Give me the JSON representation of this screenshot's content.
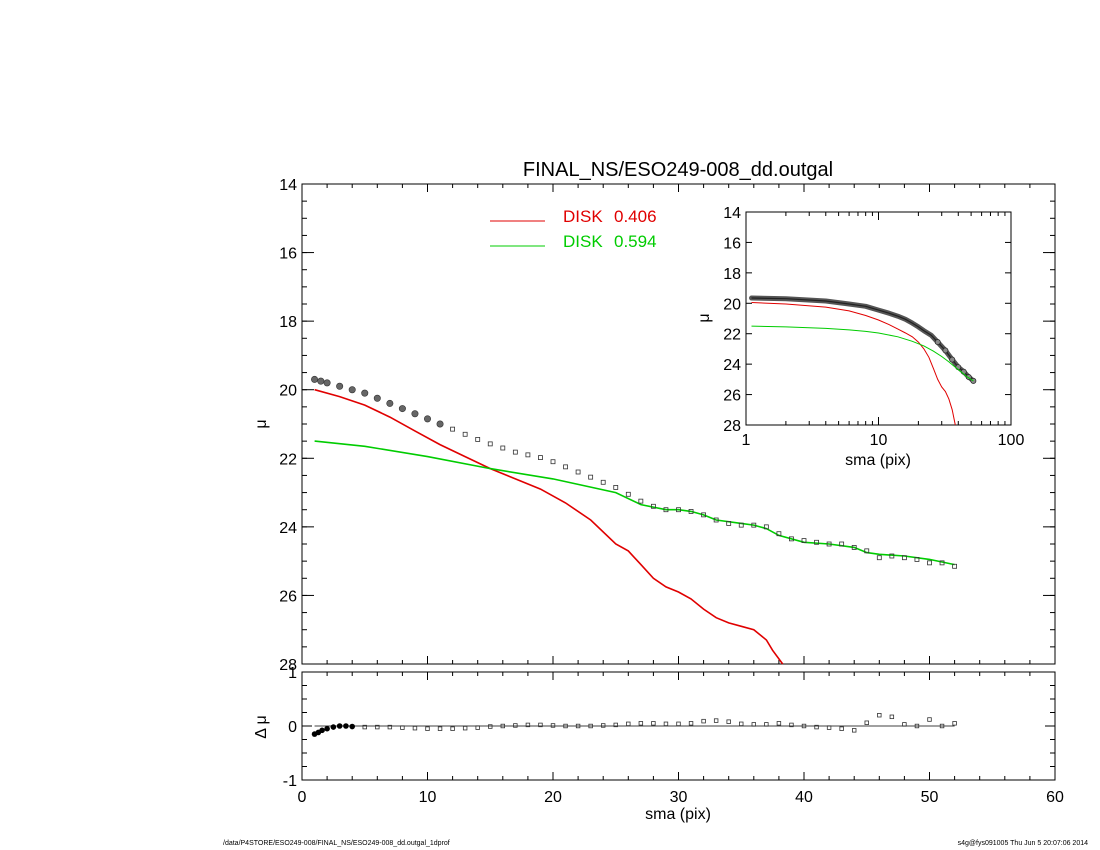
{
  "title": "FINAL_NS/ESO249-008_dd.outgal",
  "colors": {
    "data": "#555555",
    "disk1": "#e00000",
    "disk2": "#00cc00",
    "axis": "#000000"
  },
  "footer": {
    "left": "/data/P4STORE/ESO249-008/FINAL_NS/ESO249-008_dd.outgal_1dprof",
    "right": "s4g@fys091005  Thu Jun  5 20:07:06 2014"
  },
  "chart_data": [
    {
      "panel": "main",
      "type": "line",
      "xlabel": "",
      "ylabel": "μ",
      "xlim": [
        0,
        60
      ],
      "ylim": [
        28,
        14
      ],
      "y_inverted": true,
      "yticks": [
        14,
        16,
        18,
        20,
        22,
        24,
        26,
        28
      ],
      "xticks": [
        0,
        10,
        20,
        30,
        40,
        50,
        60
      ],
      "legend": {
        "placement": "top-center",
        "entries": [
          {
            "label": "DISK",
            "value": "0.406",
            "color": "#e00000"
          },
          {
            "label": "DISK",
            "value": "0.594",
            "color": "#00cc00"
          }
        ]
      },
      "series": [
        {
          "style": "dense-markers-then-squares",
          "x": [
            1.0,
            1.5,
            2.0,
            3.0,
            4.0,
            5.0,
            6.0,
            7.0,
            8.0,
            9.0,
            10.0,
            11.0,
            12.0,
            13.0,
            14.0,
            15.0,
            16.0,
            17.0,
            18.0,
            19.0,
            20.0,
            21.0,
            22.0,
            23.0,
            24.0,
            25.0,
            26.0,
            27.0,
            28.0,
            29.0,
            30.0,
            31.0,
            32.0,
            33.0,
            34.0,
            35.0,
            36.0,
            37.0,
            38.0,
            39.0,
            40.0,
            41.0,
            42.0,
            43.0,
            44.0,
            45.0,
            46.0,
            47.0,
            48.0,
            49.0,
            50.0,
            51.0,
            52.0
          ],
          "y": [
            19.7,
            19.75,
            19.8,
            19.9,
            20.0,
            20.1,
            20.25,
            20.4,
            20.55,
            20.7,
            20.85,
            21.0,
            21.15,
            21.3,
            21.45,
            21.58,
            21.7,
            21.82,
            21.9,
            21.98,
            22.1,
            22.25,
            22.4,
            22.55,
            22.7,
            22.85,
            23.05,
            23.25,
            23.4,
            23.5,
            23.5,
            23.55,
            23.65,
            23.8,
            23.9,
            23.95,
            23.95,
            24.0,
            24.2,
            24.35,
            24.4,
            24.45,
            24.5,
            24.5,
            24.6,
            24.7,
            24.9,
            24.85,
            24.9,
            24.95,
            25.05,
            25.05,
            25.15
          ]
        },
        {
          "name": "DISK",
          "color": "#e00000",
          "x": [
            1,
            3,
            5,
            7,
            9,
            11,
            13,
            15,
            17,
            19,
            21,
            23,
            25,
            26,
            27,
            28,
            29,
            30,
            31,
            32,
            33,
            34,
            35,
            36,
            37,
            37.5,
            38.3
          ],
          "y": [
            20.0,
            20.2,
            20.45,
            20.8,
            21.2,
            21.6,
            21.95,
            22.3,
            22.6,
            22.9,
            23.3,
            23.8,
            24.5,
            24.7,
            25.1,
            25.5,
            25.75,
            25.9,
            26.1,
            26.4,
            26.65,
            26.8,
            26.9,
            27.0,
            27.3,
            27.6,
            28.0
          ]
        },
        {
          "name": "DISK",
          "color": "#00cc00",
          "x": [
            1,
            5,
            10,
            15,
            20,
            25,
            27,
            29,
            30,
            31,
            32,
            33,
            35,
            36,
            37,
            38,
            40,
            42,
            44,
            45,
            46,
            48,
            50,
            52
          ],
          "y": [
            21.5,
            21.65,
            21.95,
            22.3,
            22.6,
            23.0,
            23.35,
            23.5,
            23.5,
            23.55,
            23.65,
            23.8,
            23.9,
            23.95,
            24.05,
            24.25,
            24.45,
            24.5,
            24.6,
            24.75,
            24.8,
            24.85,
            24.95,
            25.1
          ]
        }
      ]
    },
    {
      "panel": "residual",
      "type": "scatter",
      "xlabel": "sma (pix)",
      "ylabel": "Δ μ",
      "xlim": [
        0,
        60
      ],
      "ylim": [
        -1,
        1
      ],
      "xticks": [
        0,
        10,
        20,
        30,
        40,
        50,
        60
      ],
      "xticklabels": [
        "0",
        "10",
        "20",
        "30",
        "40",
        "50",
        "60"
      ],
      "yticks": [
        -1,
        0,
        1
      ],
      "yticklabels": [
        "-1",
        "0",
        "1"
      ],
      "series": [
        {
          "x": [
            1.0,
            1.3,
            1.6,
            2.0,
            2.5,
            3.0,
            3.5,
            4.0,
            5.0,
            6.0,
            7.0,
            8.0,
            9.0,
            10.0,
            11.0,
            12.0,
            13.0,
            14.0,
            15.0,
            16.0,
            17.0,
            18.0,
            19.0,
            20.0,
            21.0,
            22.0,
            23.0,
            24.0,
            25.0,
            26.0,
            27.0,
            28.0,
            29.0,
            30.0,
            31.0,
            32.0,
            33.0,
            34.0,
            35.0,
            36.0,
            37.0,
            38.0,
            39.0,
            40.0,
            41.0,
            42.0,
            43.0,
            44.0,
            45.0,
            46.0,
            47.0,
            48.0,
            49.0,
            50.0,
            51.0,
            52.0
          ],
          "y": [
            -0.15,
            -0.12,
            -0.08,
            -0.05,
            -0.02,
            0.0,
            0.0,
            -0.01,
            -0.02,
            -0.02,
            -0.02,
            -0.03,
            -0.04,
            -0.05,
            -0.05,
            -0.05,
            -0.04,
            -0.03,
            -0.01,
            0.0,
            0.01,
            0.02,
            0.02,
            0.01,
            0.0,
            0.0,
            0.0,
            0.01,
            0.02,
            0.04,
            0.05,
            0.05,
            0.04,
            0.04,
            0.05,
            0.09,
            0.1,
            0.08,
            0.04,
            0.03,
            0.03,
            0.05,
            0.02,
            0.0,
            -0.02,
            -0.03,
            -0.05,
            -0.08,
            0.06,
            0.2,
            0.17,
            0.03,
            0.0,
            0.12,
            0.0,
            0.05
          ]
        }
      ]
    },
    {
      "panel": "inset",
      "type": "line",
      "x_scale": "log",
      "xlabel": "sma (pix)",
      "ylabel": "μ",
      "xlim": [
        1,
        100
      ],
      "ylim": [
        28,
        14
      ],
      "y_inverted": true,
      "xticks": [
        1,
        10,
        100
      ],
      "xticklabels": [
        "1",
        "10",
        "100"
      ],
      "yticks": [
        14,
        16,
        18,
        20,
        22,
        24,
        26,
        28
      ],
      "series": [
        {
          "style": "thick-markers",
          "x": [
            1.1,
            2,
            4,
            6,
            8,
            10,
            12,
            14,
            16,
            18,
            20,
            22,
            25,
            28,
            32,
            36,
            40,
            44,
            48,
            52
          ],
          "y": [
            19.65,
            19.7,
            19.85,
            20.05,
            20.2,
            20.45,
            20.65,
            20.85,
            21.05,
            21.3,
            21.55,
            21.8,
            22.1,
            22.55,
            23.1,
            23.7,
            24.2,
            24.5,
            24.85,
            25.1
          ]
        },
        {
          "color": "#e00000",
          "x": [
            1.1,
            2,
            4,
            6,
            8,
            10,
            12,
            14,
            16,
            18,
            20,
            22,
            24,
            26,
            28,
            30,
            32,
            34,
            36,
            38
          ],
          "y": [
            19.95,
            20.05,
            20.25,
            20.5,
            20.8,
            21.1,
            21.4,
            21.7,
            21.95,
            22.2,
            22.55,
            23.0,
            23.55,
            24.3,
            25.0,
            25.5,
            25.8,
            26.3,
            27.0,
            28.0
          ]
        },
        {
          "color": "#00cc00",
          "x": [
            1.1,
            2,
            4,
            6,
            8,
            10,
            14,
            18,
            22,
            26,
            30,
            34,
            38,
            42,
            46,
            52
          ],
          "y": [
            21.5,
            21.55,
            21.65,
            21.75,
            21.85,
            21.95,
            22.2,
            22.5,
            22.8,
            23.15,
            23.5,
            23.85,
            24.2,
            24.5,
            24.8,
            25.1
          ]
        }
      ]
    }
  ]
}
